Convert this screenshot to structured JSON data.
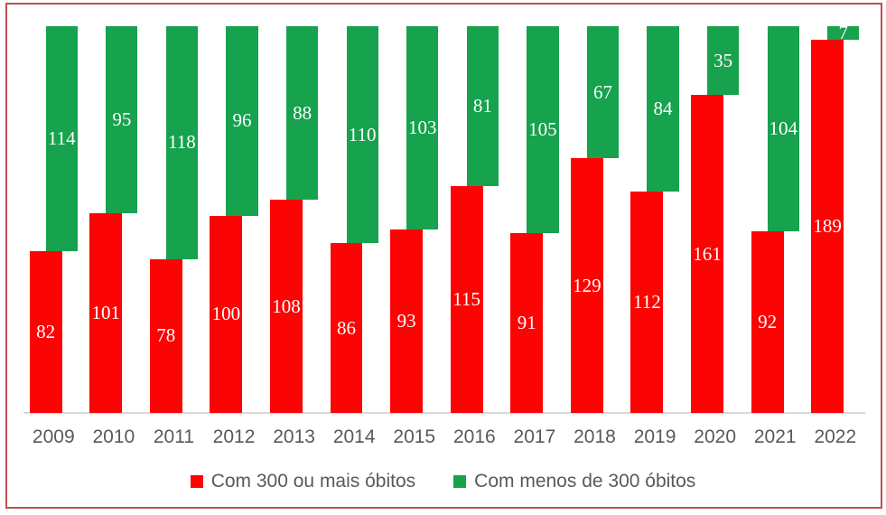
{
  "frame": {
    "border_color": "#c0504d"
  },
  "colors": {
    "background": "#ffffff",
    "red_series": "#fc0404",
    "green_series": "#17a24d",
    "axis_line": "#d9d9d9",
    "tick_text": "#595959",
    "legend_text": "#595959",
    "bar_label_text": "#ffffff"
  },
  "chart_data": {
    "type": "bar",
    "subtype": "stacked-columns-offset",
    "title": "",
    "xlabel": "",
    "ylabel": "",
    "categories": [
      "2009",
      "2010",
      "2011",
      "2012",
      "2013",
      "2014",
      "2015",
      "2016",
      "2017",
      "2018",
      "2019",
      "2020",
      "2021",
      "2022"
    ],
    "series": [
      {
        "name": "Com 300 ou mais óbitos",
        "color": "#fc0404",
        "anchor": "bottom",
        "values": [
          82,
          101,
          78,
          100,
          108,
          86,
          93,
          115,
          91,
          129,
          112,
          161,
          92,
          189
        ]
      },
      {
        "name": "Com menos de 300 óbitos",
        "color": "#17a24d",
        "anchor": "top",
        "values": [
          114,
          95,
          118,
          96,
          88,
          110,
          103,
          81,
          105,
          67,
          84,
          35,
          104,
          7
        ]
      }
    ],
    "stack_total_per_category": 196,
    "ylim": [
      0,
      196
    ],
    "grid": false,
    "y_axis_visible": false,
    "data_labels": "inside-center-white",
    "legend_position": "bottom-center"
  },
  "legend": {
    "items": [
      {
        "label": "Com 300 ou mais óbitos",
        "color": "#fc0404"
      },
      {
        "label": "Com menos de 300 óbitos",
        "color": "#17a24d"
      }
    ]
  }
}
